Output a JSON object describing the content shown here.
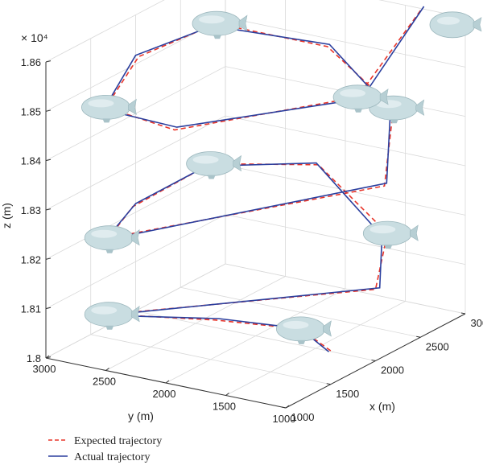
{
  "chart_data": {
    "type": "line",
    "projection": "3d",
    "exponent_label": "× 10⁴",
    "xlabel": "x (m)",
    "ylabel": "y (m)",
    "zlabel": "z (m)",
    "xlim": [
      1000,
      3000
    ],
    "ylim": [
      1000,
      3000
    ],
    "zlim": [
      1.8,
      1.86
    ],
    "x_ticks": [
      "1000",
      "1500",
      "2000",
      "2500",
      "3000"
    ],
    "y_ticks": [
      "3000",
      "2500",
      "2000",
      "1500",
      "1000"
    ],
    "z_ticks": [
      "1.8",
      "1.81",
      "1.82",
      "1.83",
      "1.84",
      "1.85",
      "1.86"
    ],
    "grid": true,
    "legend_position": "bottom-left",
    "series": [
      {
        "name": "Expected trajectory",
        "color": "#e8352a",
        "style": "dashed",
        "points": [
          [
            1500,
            1000,
            1.8068
          ],
          [
            1700,
            1400,
            1.8073
          ],
          [
            1550,
            2000,
            1.8075
          ],
          [
            1300,
            2700,
            1.8075
          ],
          [
            2000,
            1000,
            1.8145
          ],
          [
            2400,
            1200,
            1.821
          ],
          [
            2700,
            2000,
            1.828
          ],
          [
            2300,
            2600,
            1.829
          ],
          [
            1700,
            2800,
            1.825
          ],
          [
            1300,
            2700,
            1.823
          ],
          [
            2100,
            1000,
            1.8345
          ],
          [
            2600,
            1300,
            1.844
          ],
          [
            2800,
            2000,
            1.851
          ],
          [
            2500,
            2700,
            1.855
          ],
          [
            1900,
            2900,
            1.853
          ],
          [
            1400,
            2800,
            1.848
          ],
          [
            1500,
            2300,
            1.845
          ],
          [
            2200,
            1300,
            1.85
          ],
          [
            2850,
            1250,
            1.862
          ]
        ]
      },
      {
        "name": "Actual trajectory",
        "color": "#2b3f9e",
        "style": "solid",
        "points": [
          [
            1480,
            1000,
            1.8068
          ],
          [
            1720,
            1420,
            1.8071
          ],
          [
            1560,
            1980,
            1.8078
          ],
          [
            1290,
            2720,
            1.8073
          ],
          [
            2020,
            980,
            1.8147
          ],
          [
            2380,
            1230,
            1.8205
          ],
          [
            2690,
            2010,
            1.8284
          ],
          [
            2280,
            2620,
            1.8286
          ],
          [
            1720,
            2790,
            1.8255
          ],
          [
            1290,
            2720,
            1.8226
          ],
          [
            2110,
            990,
            1.835
          ],
          [
            2580,
            1310,
            1.8436
          ],
          [
            2810,
            1990,
            1.8514
          ],
          [
            2480,
            2720,
            1.8546
          ],
          [
            1880,
            2910,
            1.8534
          ],
          [
            1390,
            2810,
            1.8476
          ],
          [
            1510,
            2290,
            1.8455
          ],
          [
            2220,
            1280,
            1.8496
          ],
          [
            2860,
            1240,
            1.8624
          ]
        ]
      }
    ]
  }
}
